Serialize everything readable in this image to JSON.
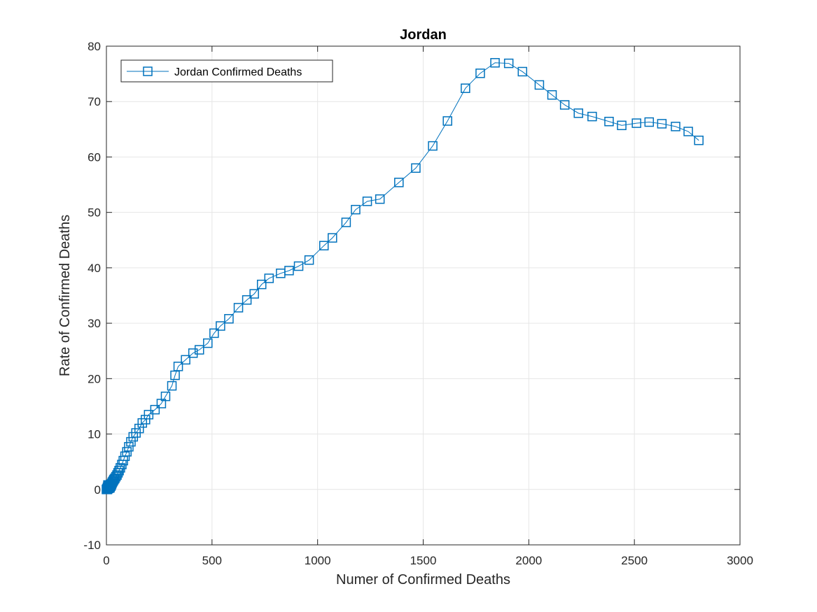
{
  "chart_data": {
    "type": "line",
    "title": "Jordan",
    "xlabel": "Numer of Confirmed Deaths",
    "ylabel": "Rate of Confirmed Deaths",
    "xlim": [
      0,
      3000
    ],
    "ylim": [
      -10,
      80
    ],
    "xticks": [
      "0",
      "500",
      "1000",
      "1500",
      "2000",
      "2500",
      "3000"
    ],
    "yticks": [
      "-10",
      "0",
      "10",
      "20",
      "30",
      "40",
      "50",
      "60",
      "70",
      "80"
    ],
    "grid": true,
    "legend": {
      "position": "top-left",
      "entries": [
        "Jordan Confirmed Deaths"
      ]
    },
    "series": [
      {
        "name": "Jordan Confirmed Deaths",
        "color": "#0072BD",
        "marker": "square",
        "x": [
          0,
          1,
          2,
          3,
          4,
          5,
          5,
          6,
          7,
          8,
          9,
          10,
          11,
          12,
          13,
          14,
          15,
          17,
          19,
          21,
          23,
          25,
          27,
          30,
          33,
          36,
          40,
          45,
          50,
          55,
          60,
          66,
          73,
          80,
          88,
          97,
          106,
          116,
          127,
          140,
          155,
          170,
          185,
          200,
          230,
          260,
          280,
          310,
          325,
          340,
          375,
          410,
          440,
          480,
          510,
          540,
          580,
          625,
          665,
          700,
          735,
          770,
          825,
          865,
          910,
          960,
          1030,
          1070,
          1135,
          1180,
          1235,
          1295,
          1385,
          1465,
          1545,
          1615,
          1700,
          1770,
          1840,
          1905,
          1970,
          2050,
          2110,
          2170,
          2235,
          2300,
          2380,
          2440,
          2510,
          2570,
          2630,
          2695,
          2755,
          2805
        ],
        "y": [
          0,
          0,
          0.1,
          0,
          0.2,
          0,
          0.4,
          0.1,
          0.8,
          0.2,
          0.5,
          0.3,
          0.8,
          0.2,
          0.5,
          0.4,
          0.7,
          0.3,
          0.9,
          0.6,
          0.8,
          1.0,
          1.2,
          1.4,
          1.6,
          1.8,
          2.0,
          2.3,
          2.6,
          3.0,
          3.4,
          3.9,
          4.5,
          5.2,
          6.0,
          6.8,
          7.7,
          8.6,
          9.5,
          10.2,
          11.0,
          12.0,
          12.6,
          13.5,
          14.4,
          15.5,
          16.8,
          18.7,
          20.6,
          22.2,
          23.4,
          24.6,
          25.2,
          26.4,
          28.2,
          29.5,
          30.8,
          32.8,
          34.2,
          35.3,
          37.0,
          38.1,
          39.0,
          39.5,
          40.3,
          41.4,
          44.0,
          45.4,
          48.2,
          50.5,
          52.0,
          52.4,
          55.4,
          58.0,
          62.0,
          66.5,
          72.4,
          75.1,
          77.0,
          76.9,
          75.4,
          73.0,
          71.2,
          69.4,
          67.9,
          67.3,
          66.4,
          65.7,
          66.1,
          66.3,
          66.0,
          65.5,
          64.6,
          63.0
        ]
      }
    ]
  }
}
